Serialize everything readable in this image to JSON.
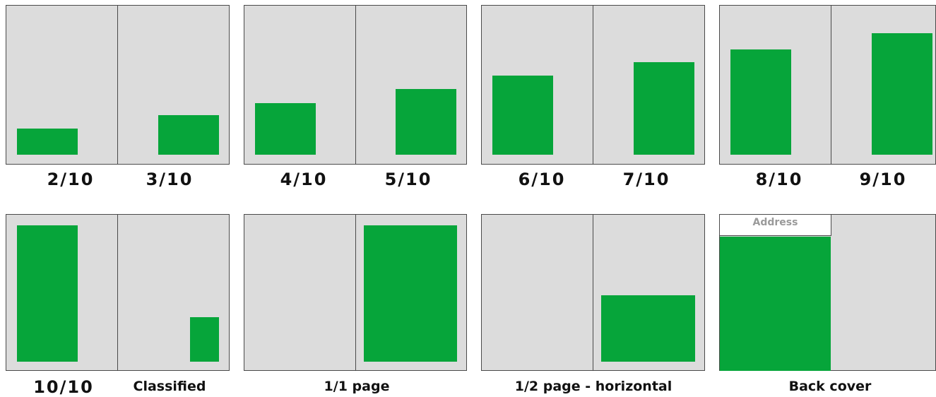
{
  "colors": {
    "ad_fill": "#06a53a",
    "page_fill": "#dcdcdc",
    "border": "#4a4a4a"
  },
  "row1": {
    "s1": {
      "left": "2/10",
      "right": "3/10"
    },
    "s2": {
      "left": "4/10",
      "right": "5/10"
    },
    "s3": {
      "left": "6/10",
      "right": "7/10"
    },
    "s4": {
      "left": "8/10",
      "right": "9/10"
    }
  },
  "row2": {
    "s1": {
      "left": "10/10",
      "right": "Classified"
    },
    "s2": {
      "label": "1/1 page"
    },
    "s3": {
      "label": "1/2 page - horizontal"
    },
    "s4": {
      "label": "Back cover",
      "address": "Address"
    }
  }
}
